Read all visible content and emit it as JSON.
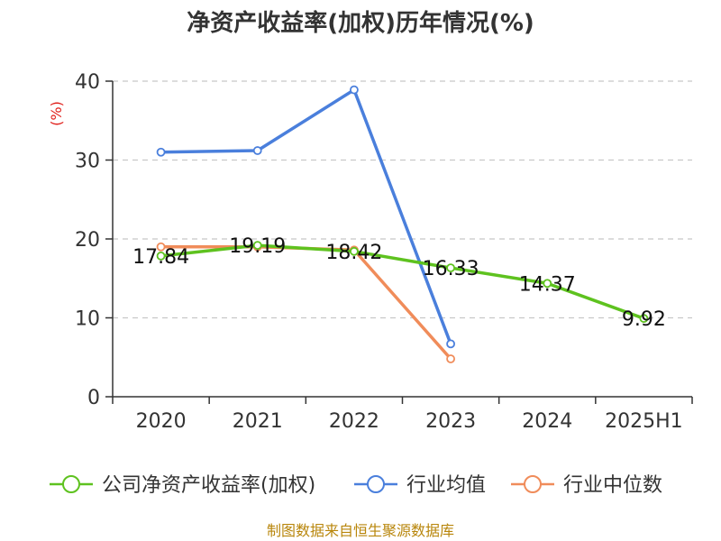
{
  "title": "净资产收益率(加权)历年情况(%)",
  "source": "制图数据来自恒生聚源数据库",
  "chart_data": {
    "type": "line",
    "title": "净资产收益率(加权)历年情况(%)",
    "ylabel": "(%)",
    "xlabel": "",
    "categories": [
      "2020",
      "2021",
      "2022",
      "2023",
      "2024",
      "2025H1"
    ],
    "ylim": [
      0,
      40
    ],
    "yticks": [
      0,
      10,
      20,
      30,
      40
    ],
    "grid": true,
    "legend_position": "bottom",
    "series": [
      {
        "name": "公司净资产收益率(加权)",
        "color": "#5ec21f",
        "values": [
          17.84,
          19.19,
          18.42,
          16.33,
          14.37,
          9.92
        ],
        "labels": [
          "17.84",
          "19.19",
          "18.42",
          "16.33",
          "14.37",
          "9.92"
        ]
      },
      {
        "name": "行业均值",
        "color": "#4a7fdc",
        "values": [
          31.0,
          31.2,
          38.9,
          6.7,
          null,
          null
        ]
      },
      {
        "name": "行业中位数",
        "color": "#f08c5a",
        "values": [
          19.0,
          19.0,
          18.6,
          4.8,
          null,
          null
        ]
      }
    ]
  }
}
